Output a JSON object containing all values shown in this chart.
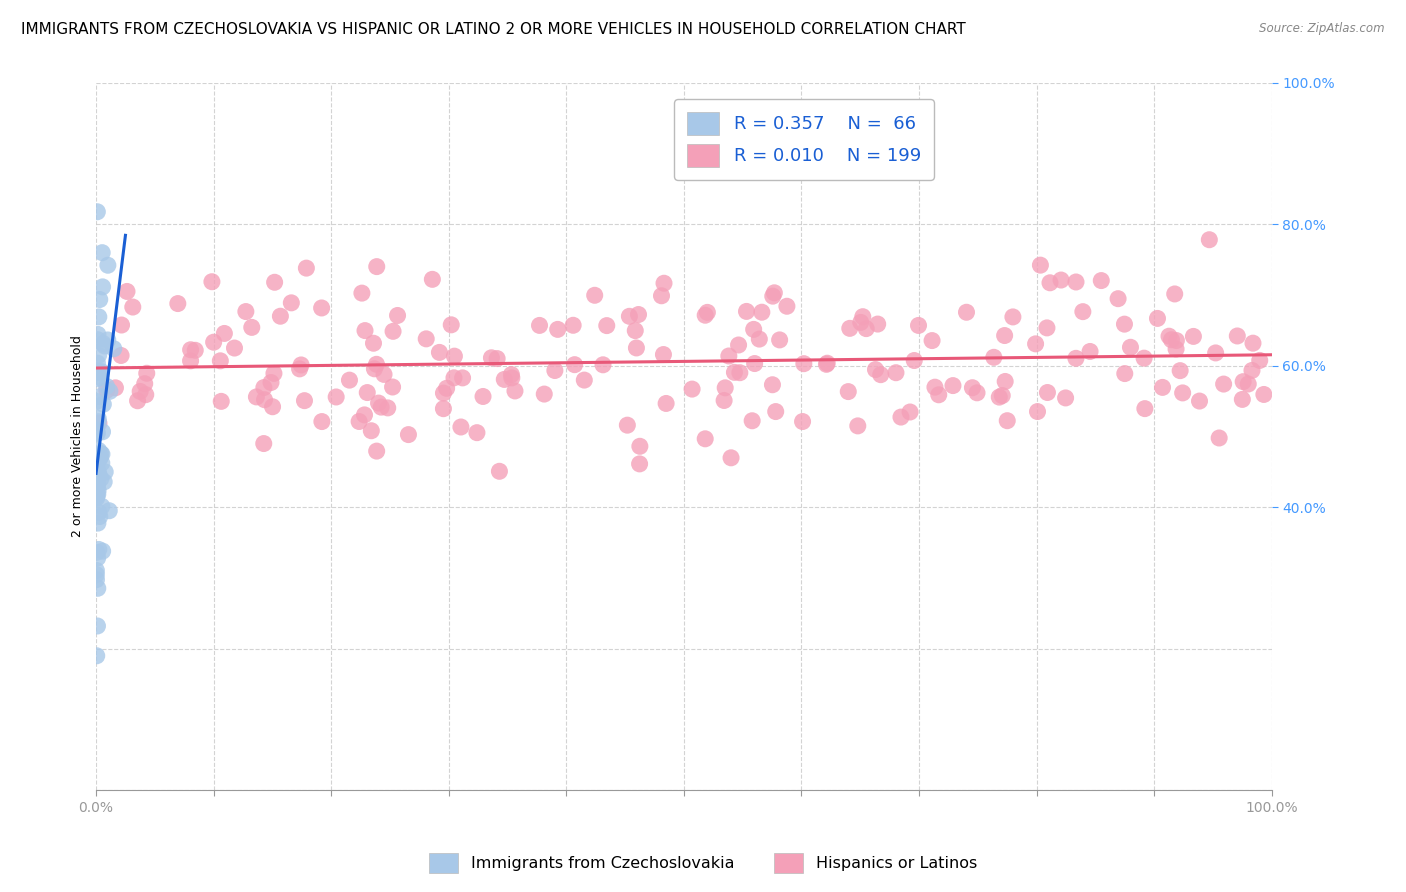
{
  "title": "IMMIGRANTS FROM CZECHOSLOVAKIA VS HISPANIC OR LATINO 2 OR MORE VEHICLES IN HOUSEHOLD CORRELATION CHART",
  "source": "Source: ZipAtlas.com",
  "ylabel": "2 or more Vehicles in Household",
  "blue_R": 0.357,
  "blue_N": 66,
  "pink_R": 0.01,
  "pink_N": 199,
  "blue_color": "#a8c8e8",
  "pink_color": "#f4a0b8",
  "blue_line_color": "#1a5fd4",
  "pink_line_color": "#e85878",
  "legend_label_blue": "Immigrants from Czechoslovakia",
  "legend_label_pink": "Hispanics or Latinos",
  "background_color": "#ffffff",
  "grid_color": "#c8c8c8",
  "title_fontsize": 11,
  "axis_label_fontsize": 9,
  "tick_fontsize": 10,
  "right_ytick_color": "#4499ff",
  "xtick_label_color": "#4499ff"
}
